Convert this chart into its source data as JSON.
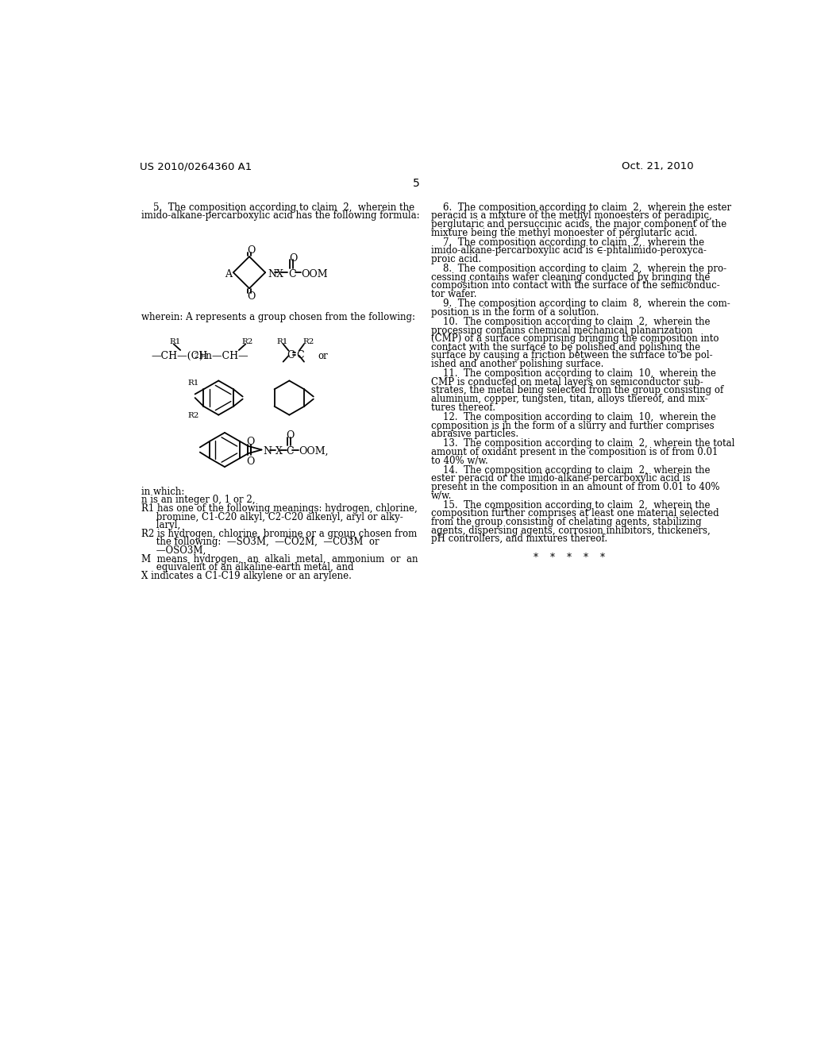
{
  "background_color": "#ffffff",
  "header_left": "US 2010/0264360 A1",
  "header_right": "Oct. 21, 2010",
  "page_number": "5",
  "claim5_lines": [
    "    5.  The composition according to claim  2,  wherein the",
    "imido-alkane-percarboxylic acid has the following formula:"
  ],
  "wherein_text": "wherein: A represents a group chosen from the following:",
  "in_which_lines": [
    "in which:",
    "n is an integer 0, 1 or 2,",
    "R1 has one of the following meanings: hydrogen, chlorine,",
    "     bromine, C1-C20 alkyl, C2-C20 alkenyl, aryl or alky-",
    "     laryl,",
    "R2 is hydrogen, chlorine, bromine or a group chosen from",
    "     the following:  —SO3M,  —CO2M,  —CO3M  or",
    "     —OSO3M,",
    "M  means  hydrogen,  an  alkali  metal,  ammonium  or  an",
    "     equivalent of an alkaline-earth metal, and",
    "X indicates a C1-C19 alkylene or an arylene."
  ],
  "claim6_lines": [
    "    6.  The composition according to claim  2,  wherein the ester",
    "peracid is a mixture of the methyl monoesters of peradipic,",
    "perglutaric and persuccinic acids, the major component of the",
    "mixture being the methyl monoester of perglutaric acid."
  ],
  "claim7_lines": [
    "    7.  The composition according to claim  2,  wherein the",
    "imido-alkane-percarboxylic acid is ∈-phtalimido-peroxyca-",
    "proic acid."
  ],
  "claim8_lines": [
    "    8.  The composition according to claim  2,  wherein the pro-",
    "cessing contains wafer cleaning conducted by bringing the",
    "composition into contact with the surface of the semiconduc-",
    "tor wafer."
  ],
  "claim9_lines": [
    "    9.  The composition according to claim  8,  wherein the com-",
    "position is in the form of a solution."
  ],
  "claim10_lines": [
    "    10.  The composition according to claim  2,  wherein the",
    "processing contains chemical mechanical planarization",
    "(CMP) of a surface comprising bringing the composition into",
    "contact with the surface to be polished and polishing the",
    "surface by causing a friction between the surface to be pol-",
    "ished and another polishing surface."
  ],
  "claim11_lines": [
    "    11.  The composition according to claim  10,  wherein the",
    "CMP is conducted on metal layers on semiconductor sub-",
    "strates, the metal being selected from the group consisting of",
    "aluminum, copper, tungsten, titan, alloys thereof, and mix-",
    "tures thereof."
  ],
  "claim12_lines": [
    "    12.  The composition according to claim  10,  wherein the",
    "composition is in the form of a slurry and further comprises",
    "abrasive particles."
  ],
  "claim13_lines": [
    "    13.  The composition according to claim  2,  wherein the total",
    "amount of oxidant present in the composition is of from 0.01",
    "to 40% w/w."
  ],
  "claim14_lines": [
    "    14.  The composition according to claim  2,  wherein the",
    "ester peracid or the imido-alkane-percarboxylic acid is",
    "present in the composition in an amount of from 0.01 to 40%",
    "w/w."
  ],
  "claim15_lines": [
    "    15.  The composition according to claim  2,  wherein the",
    "composition further comprises at least one material selected",
    "from the group consisting of chelating agents, stabilizing",
    "agents, dispersing agents, corrosion inhibitors, thickeners,",
    "pH controllers, and mixtures thereof."
  ],
  "asterisks": "*    *    *    *    *"
}
